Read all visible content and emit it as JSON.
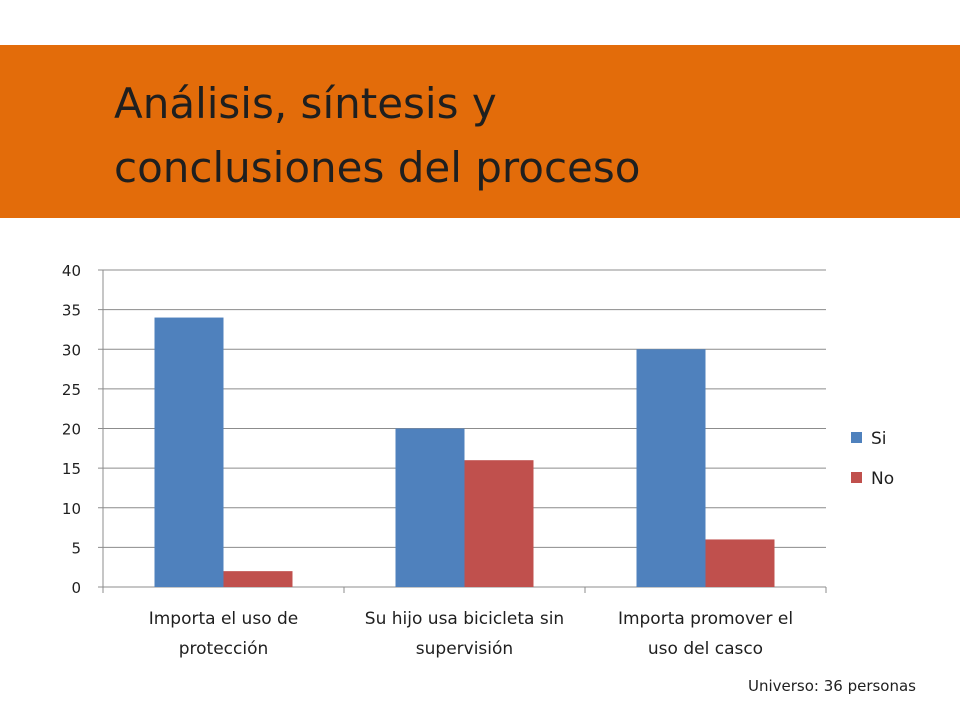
{
  "slide": {
    "title_line1": "Análisis, síntesis y",
    "title_line2": "conclusiones del proceso",
    "footnote": "Universo: 36 personas",
    "accent_color": "#E36C0A"
  },
  "chart_data": {
    "type": "bar",
    "categories": [
      "Importa el uso de protección",
      "Su hijo usa bicicleta sin supervisión",
      "Importa promover el uso del casco"
    ],
    "category_lines": [
      [
        "Importa el uso de",
        "protección"
      ],
      [
        "Su hijo usa bicicleta sin",
        "supervisión"
      ],
      [
        "Importa promover el",
        "uso del casco"
      ]
    ],
    "series": [
      {
        "name": "Si",
        "values": [
          34,
          20,
          30
        ],
        "color": "#4F81BD"
      },
      {
        "name": "No",
        "values": [
          2,
          16,
          6
        ],
        "color": "#C0504D"
      }
    ],
    "ylim": [
      0,
      40
    ],
    "yticks": [
      0,
      5,
      10,
      15,
      20,
      25,
      30,
      35,
      40
    ],
    "grid": true,
    "legend": "right",
    "title": "",
    "xlabel": "",
    "ylabel": ""
  }
}
